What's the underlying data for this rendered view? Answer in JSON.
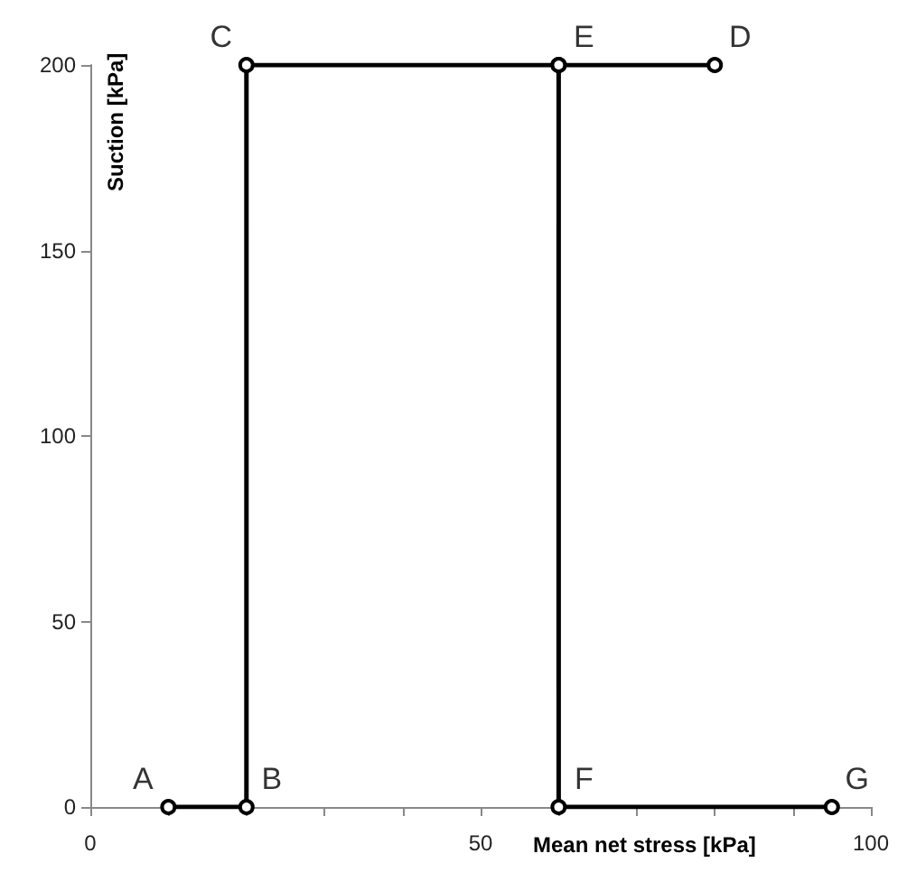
{
  "chart_data": {
    "type": "line",
    "xlabel": "Mean net stress [kPa]",
    "ylabel": "Suction [kPa]",
    "series": [
      {
        "color": "#000000",
        "x": [
          10,
          20,
          20,
          60,
          80
        ],
        "values": [
          0,
          0,
          200,
          200,
          200
        ]
      },
      {
        "color": "#000000",
        "x": [
          60,
          60,
          95
        ],
        "values": [
          200,
          0,
          0
        ]
      }
    ],
    "annotations": [
      {
        "text": "A",
        "x": 10,
        "y": 0
      },
      {
        "text": "B",
        "x": 20,
        "y": 0
      },
      {
        "text": "C",
        "x": 20,
        "y": 200
      },
      {
        "text": "E",
        "x": 60,
        "y": 200
      },
      {
        "text": "D",
        "x": 80,
        "y": 200
      },
      {
        "text": "F",
        "x": 60,
        "y": 0
      },
      {
        "text": "G",
        "x": 95,
        "y": 0
      }
    ],
    "xlim": [
      0,
      100
    ],
    "xticks": [
      0,
      {
        "value": 10,
        "label": null
      },
      {
        "value": 20,
        "label": null
      },
      {
        "value": 30,
        "label": null
      },
      {
        "value": 40,
        "label": null
      },
      50,
      {
        "value": 60,
        "label": null
      },
      {
        "value": 70,
        "label": null
      },
      {
        "value": 80,
        "label": null
      },
      {
        "value": 90,
        "label": null
      },
      100
    ],
    "ylim": [
      0,
      200
    ],
    "yticks": [
      0,
      50,
      100,
      150,
      200
    ],
    "marker": "circle",
    "line_style": "solid",
    "grid": false
  }
}
